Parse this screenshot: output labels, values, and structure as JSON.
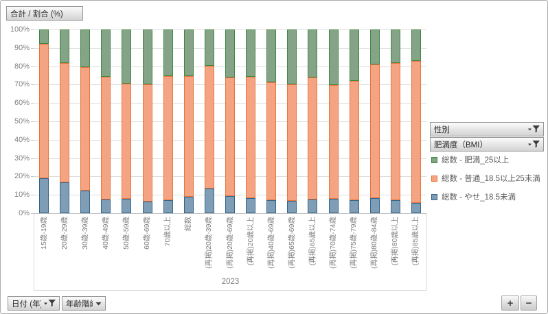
{
  "chart_data": {
    "type": "bar",
    "variant": "stacked-100-percent-column",
    "title": "合計 / 割合 (%)",
    "year_label": "2023",
    "grid": true,
    "legend_position": "right",
    "ylim": [
      0,
      100
    ],
    "yticks": [
      "0%",
      "10%",
      "20%",
      "30%",
      "40%",
      "50%",
      "60%",
      "70%",
      "80%",
      "90%",
      "100%"
    ],
    "categories": [
      "15歳-19歳",
      "20歳-29歳",
      "30歳-39歳",
      "40歳-49歳",
      "50歳-59歳",
      "60歳-69歳",
      "70歳以上",
      "総数",
      "(再掲)20歳-39歳",
      "(再掲)20歳-69歳",
      "(再掲)20歳以上",
      "(再掲)40歳-69歳",
      "(再掲)65歳-69歳",
      "(再掲)65歳以上",
      "(再掲)70歳-74歳",
      "(再掲)75歳-79歳",
      "(再掲)80歳-84歳",
      "(再掲)80歳以上",
      "(再掲)85歳以上"
    ],
    "series": [
      {
        "name": "総数 - やせ_18.5未満",
        "fill": "#7F9EB6",
        "border": "#31658C",
        "values": [
          19.0,
          16.8,
          12.3,
          7.5,
          7.8,
          6.3,
          7.1,
          9.0,
          13.4,
          9.3,
          8.2,
          7.1,
          6.7,
          7.5,
          7.8,
          7.1,
          8.2,
          7.1,
          5.6
        ]
      },
      {
        "name": "総数 - 普通_18.5以上25未満",
        "fill": "#F5A483",
        "border": "#E8743B",
        "values": [
          73.2,
          65.0,
          67.0,
          66.8,
          62.9,
          63.9,
          67.5,
          65.6,
          66.8,
          64.6,
          66.1,
          64.2,
          63.4,
          66.4,
          62.0,
          64.9,
          72.8,
          74.6,
          77.2
        ]
      },
      {
        "name": "総数 - 肥満_25以上",
        "fill": "#84A387",
        "border": "#3E8641",
        "values": [
          7.8,
          18.2,
          20.7,
          25.7,
          29.3,
          29.8,
          25.4,
          25.4,
          19.8,
          26.1,
          25.7,
          28.7,
          29.9,
          26.1,
          30.2,
          28.0,
          19.0,
          18.3,
          17.2
        ]
      }
    ]
  },
  "legend": [
    {
      "label": "総数 - 肥満_25以上",
      "fill": "#84A387",
      "border": "#3E8641"
    },
    {
      "label": "総数 - 普通_18.5以上25未満",
      "fill": "#F5A483",
      "border": "#E8743B"
    },
    {
      "label": "総数 - やせ_18.5未満",
      "fill": "#7F9EB6",
      "border": "#31658C"
    }
  ],
  "field_buttons": {
    "value": "合計 / 割合 (%)",
    "legend_fields": [
      {
        "label": "性別",
        "icon": "filter-dropdown"
      },
      {
        "label": "肥満度（BMI）",
        "icon": "filter-dropdown"
      }
    ],
    "axis_fields": [
      {
        "label": "日付 (年)",
        "icon": "filter-dropdown"
      },
      {
        "label": "年齢階級",
        "icon": "dropdown"
      }
    ]
  },
  "zoom_buttons": {
    "plus": "+",
    "minus": "−"
  },
  "colors": {
    "grid": "#DCDCDC",
    "axis_text": "#808080",
    "legend_text": "#595959"
  }
}
